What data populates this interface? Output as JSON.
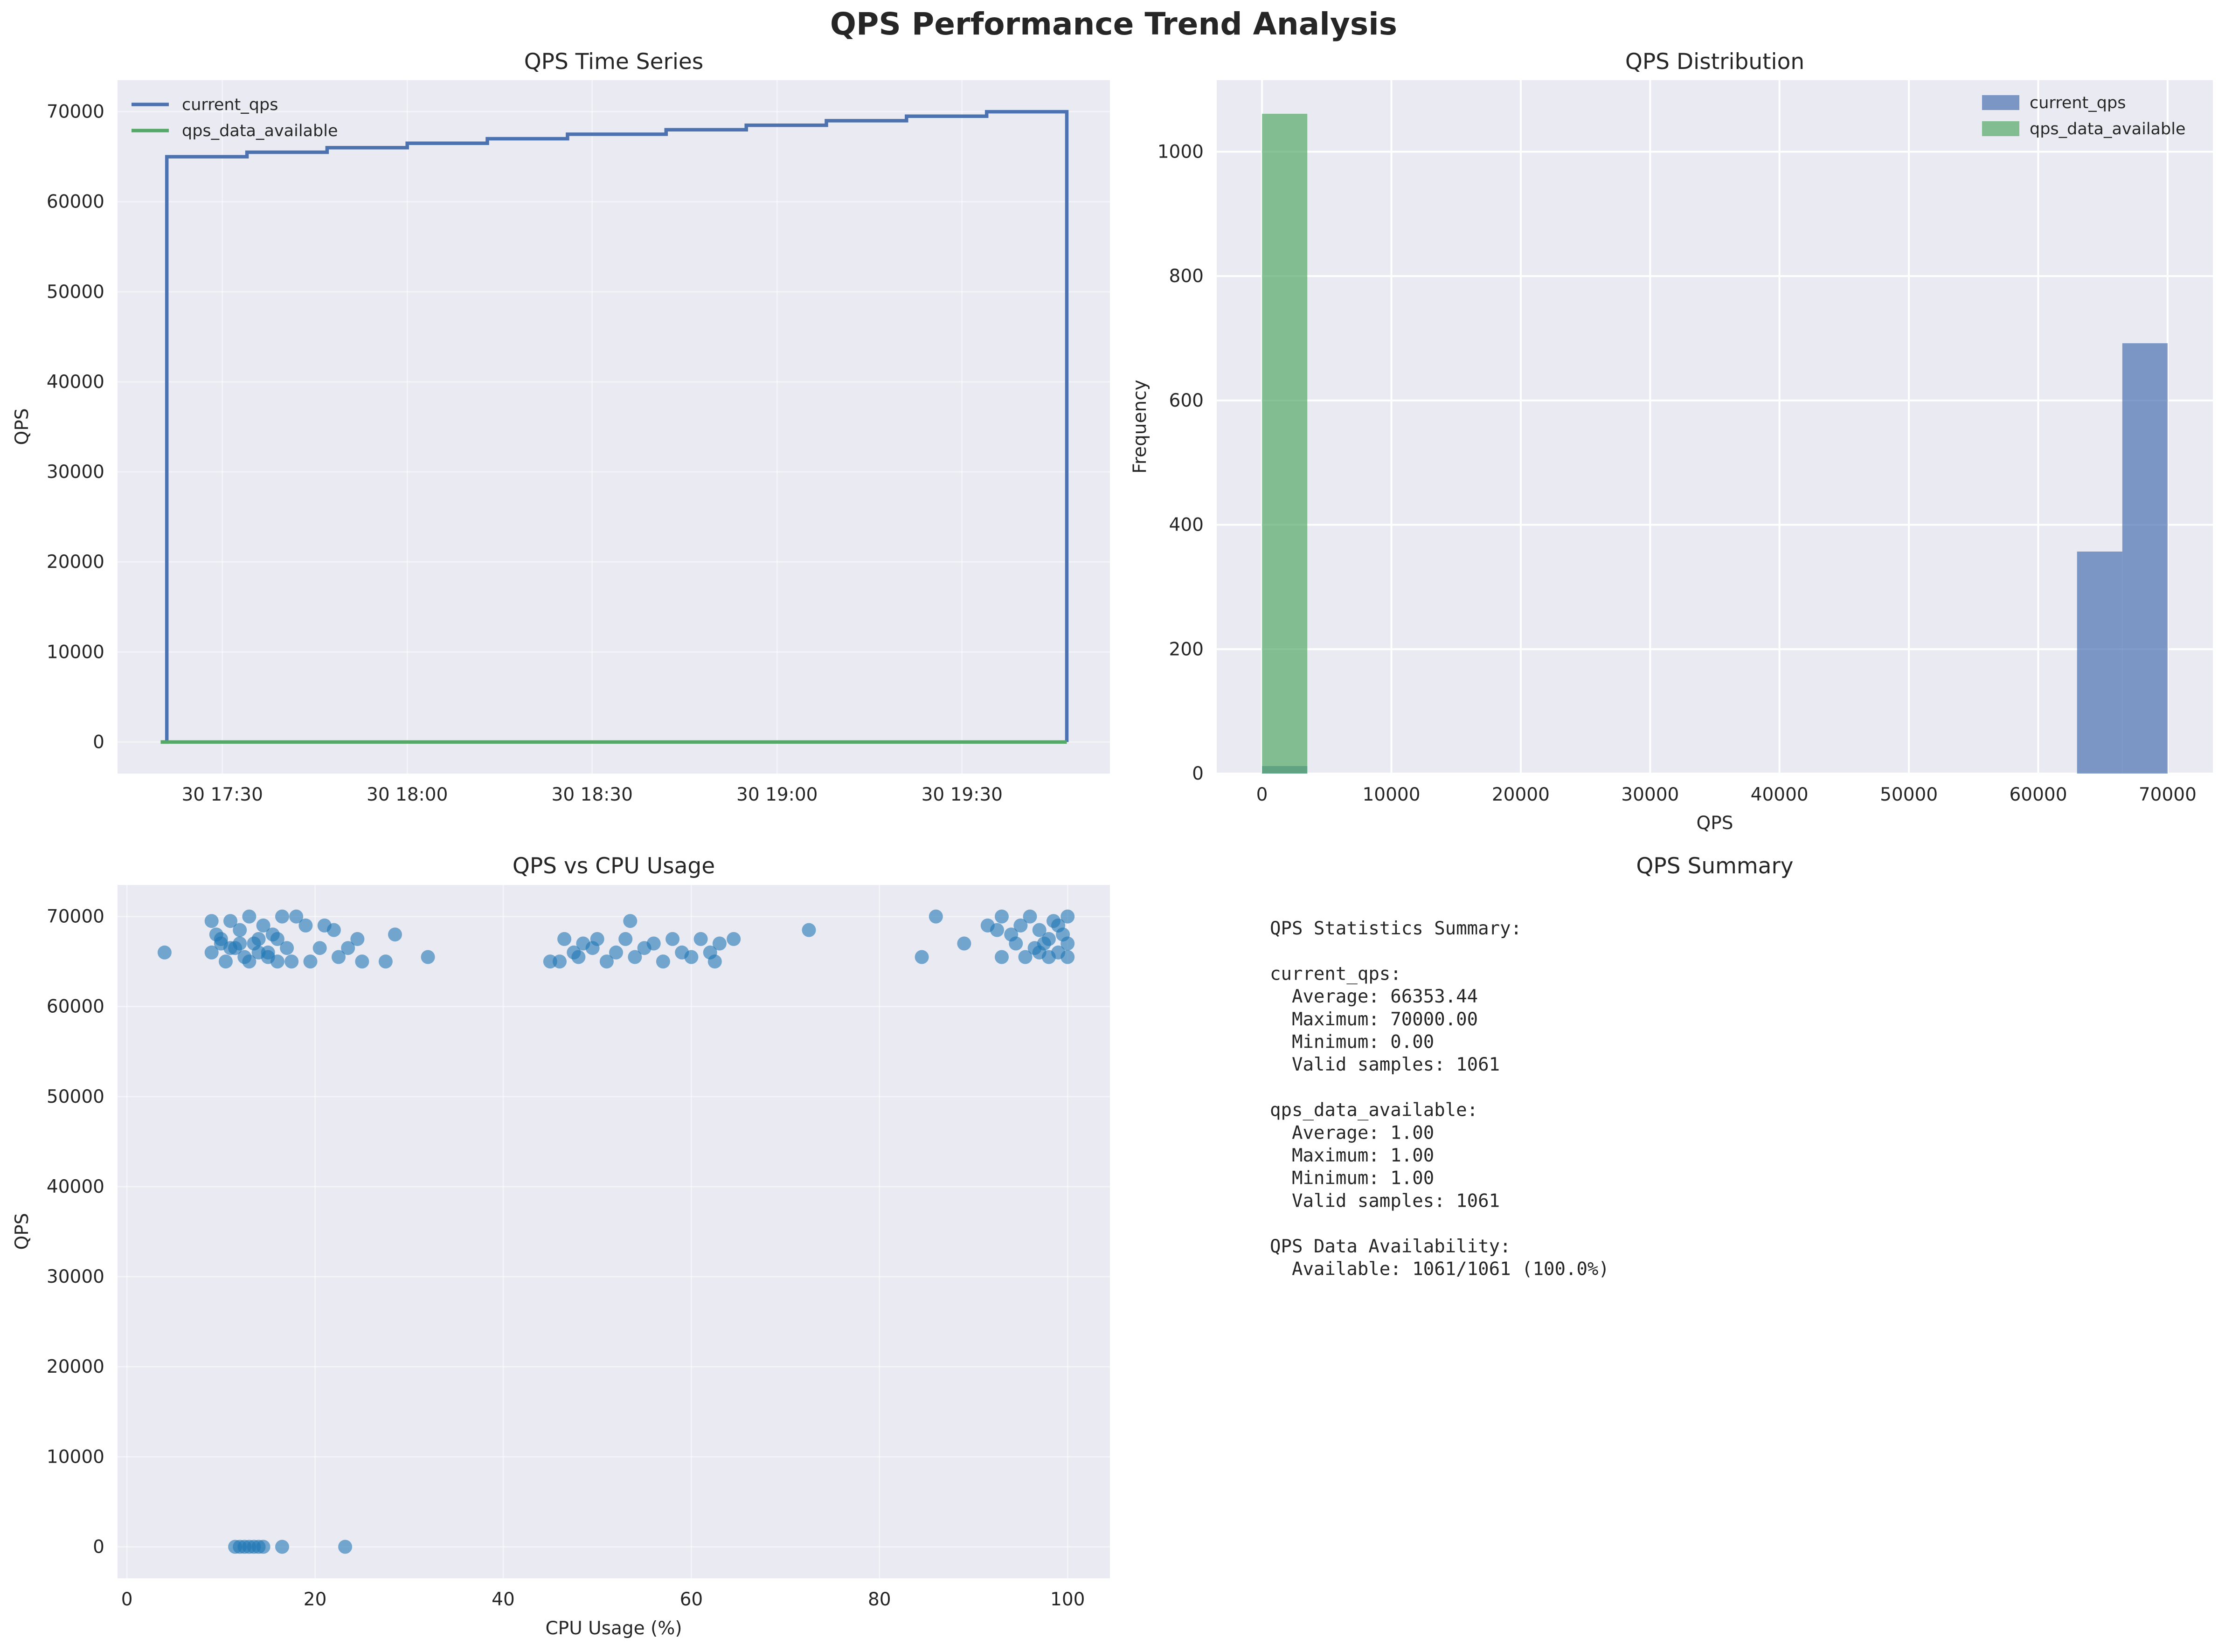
{
  "figure": {
    "title": "QPS Performance Trend Analysis",
    "background": "#ffffff",
    "axes_background": "#eaeaf2",
    "grid_color": "#ffffff"
  },
  "chart_data": [
    {
      "type": "line",
      "title": "QPS Time Series",
      "xlabel": "",
      "ylabel": "QPS",
      "x_ticks": [
        "30 17:30",
        "30 18:00",
        "30 18:30",
        "30 19:00",
        "30 19:30"
      ],
      "xlim": [
        "17:13",
        "19:54"
      ],
      "ylim": [
        -3500,
        73500
      ],
      "y_ticks": [
        0,
        10000,
        20000,
        30000,
        40000,
        50000,
        60000,
        70000
      ],
      "grid": true,
      "legend": "top-left",
      "series": [
        {
          "name": "current_qps",
          "color": "#4c72b0",
          "points": [
            [
              "17:20",
              0
            ],
            [
              "17:21",
              0
            ],
            [
              "17:21",
              65000
            ],
            [
              "17:34",
              65000
            ],
            [
              "17:34",
              65500
            ],
            [
              "17:47",
              65500
            ],
            [
              "17:47",
              66000
            ],
            [
              "18:00",
              66000
            ],
            [
              "18:00",
              66500
            ],
            [
              "18:13",
              66500
            ],
            [
              "18:13",
              67000
            ],
            [
              "18:26",
              67000
            ],
            [
              "18:26",
              67500
            ],
            [
              "18:42",
              67500
            ],
            [
              "18:42",
              68000
            ],
            [
              "18:55",
              68000
            ],
            [
              "18:55",
              68500
            ],
            [
              "19:08",
              68500
            ],
            [
              "19:08",
              69000
            ],
            [
              "19:21",
              69000
            ],
            [
              "19:21",
              69500
            ],
            [
              "19:34",
              69500
            ],
            [
              "19:34",
              70000
            ],
            [
              "19:47",
              70000
            ],
            [
              "19:47",
              0
            ]
          ]
        },
        {
          "name": "qps_data_available",
          "color": "#55a868",
          "points": [
            [
              "17:20",
              1
            ],
            [
              "19:47",
              1
            ]
          ]
        }
      ]
    },
    {
      "type": "bar",
      "title": "QPS Distribution",
      "xlabel": "QPS",
      "ylabel": "Frequency",
      "xlim": [
        -3500,
        73500
      ],
      "ylim": [
        0,
        1115
      ],
      "x_ticks": [
        0,
        10000,
        20000,
        30000,
        40000,
        50000,
        60000,
        70000
      ],
      "y_ticks": [
        0,
        200,
        400,
        600,
        800,
        1000
      ],
      "grid": true,
      "legend": "top-right",
      "series": [
        {
          "name": "current_qps",
          "color": "#4c72b0",
          "bins": [
            {
              "from": 0,
              "to": 3500,
              "count": 12
            },
            {
              "from": 63000,
              "to": 66500,
              "count": 357
            },
            {
              "from": 66500,
              "to": 70000,
              "count": 692
            }
          ]
        },
        {
          "name": "qps_data_available",
          "color": "#55a868",
          "bins": [
            {
              "from": 0,
              "to": 3500,
              "count": 1061
            }
          ]
        }
      ]
    },
    {
      "type": "scatter",
      "title": "QPS vs CPU Usage",
      "xlabel": "CPU Usage (%)",
      "ylabel": "QPS",
      "xlim": [
        -1,
        104.5
      ],
      "ylim": [
        -3500,
        73500
      ],
      "x_ticks": [
        0,
        20,
        40,
        60,
        80,
        100
      ],
      "y_ticks": [
        0,
        10000,
        20000,
        30000,
        40000,
        50000,
        60000,
        70000
      ],
      "grid": true,
      "color": "#1f77b4",
      "points": [
        [
          4,
          66000
        ],
        [
          9,
          69500
        ],
        [
          9.5,
          68000
        ],
        [
          10,
          67000
        ],
        [
          10.5,
          65000
        ],
        [
          11,
          69500
        ],
        [
          11.5,
          66500
        ],
        [
          12,
          68500
        ],
        [
          12.5,
          65500
        ],
        [
          13,
          70000
        ],
        [
          13.5,
          67000
        ],
        [
          14,
          66000
        ],
        [
          14.5,
          69000
        ],
        [
          15,
          65500
        ],
        [
          15.5,
          68000
        ],
        [
          16,
          67500
        ],
        [
          16.5,
          70000
        ],
        [
          17,
          66500
        ],
        [
          17.5,
          65000
        ],
        [
          18,
          70000
        ],
        [
          19,
          69000
        ],
        [
          19.5,
          65000
        ],
        [
          20.5,
          66500
        ],
        [
          21,
          69000
        ],
        [
          22,
          68500
        ],
        [
          22.5,
          65500
        ],
        [
          23.5,
          66500
        ],
        [
          24.5,
          67500
        ],
        [
          25,
          65000
        ],
        [
          27.5,
          65000
        ],
        [
          28.5,
          68000
        ],
        [
          32,
          65500
        ],
        [
          9,
          66000
        ],
        [
          10,
          67500
        ],
        [
          11,
          66500
        ],
        [
          12,
          67000
        ],
        [
          13,
          65000
        ],
        [
          14,
          67500
        ],
        [
          15,
          66000
        ],
        [
          16,
          65000
        ],
        [
          45,
          65000
        ],
        [
          46,
          65000
        ],
        [
          46.5,
          67500
        ],
        [
          47.5,
          66000
        ],
        [
          48,
          65500
        ],
        [
          48.5,
          67000
        ],
        [
          49.5,
          66500
        ],
        [
          50,
          67500
        ],
        [
          51,
          65000
        ],
        [
          52,
          66000
        ],
        [
          53,
          67500
        ],
        [
          53.5,
          69500
        ],
        [
          54,
          65500
        ],
        [
          55,
          66500
        ],
        [
          56,
          67000
        ],
        [
          57,
          65000
        ],
        [
          58,
          67500
        ],
        [
          59,
          66000
        ],
        [
          60,
          65500
        ],
        [
          61,
          67500
        ],
        [
          62,
          66000
        ],
        [
          62.5,
          65000
        ],
        [
          63,
          67000
        ],
        [
          64.5,
          67500
        ],
        [
          72.5,
          68500
        ],
        [
          84.5,
          65500
        ],
        [
          86,
          70000
        ],
        [
          89,
          67000
        ],
        [
          91.5,
          69000
        ],
        [
          92.5,
          68500
        ],
        [
          93,
          65500
        ],
        [
          93,
          70000
        ],
        [
          94,
          68000
        ],
        [
          94.5,
          67000
        ],
        [
          95,
          69000
        ],
        [
          95.5,
          65500
        ],
        [
          96,
          70000
        ],
        [
          96.5,
          66500
        ],
        [
          97,
          68500
        ],
        [
          97.5,
          67000
        ],
        [
          98,
          65500
        ],
        [
          98.5,
          69500
        ],
        [
          99,
          66000
        ],
        [
          99.5,
          68000
        ],
        [
          100,
          70000
        ],
        [
          100,
          65500
        ],
        [
          100,
          67000
        ],
        [
          99,
          69000
        ],
        [
          97,
          66000
        ],
        [
          98,
          67500
        ],
        [
          11.5,
          0
        ],
        [
          12,
          0
        ],
        [
          12.5,
          0
        ],
        [
          13,
          0
        ],
        [
          13.5,
          0
        ],
        [
          14,
          0
        ],
        [
          14.5,
          0
        ],
        [
          16.5,
          0
        ],
        [
          23.2,
          0
        ]
      ]
    }
  ],
  "summary": {
    "title": "QPS Summary",
    "lines": [
      "QPS Statistics Summary:",
      "",
      "current_qps:",
      "  Average: 66353.44",
      "  Maximum: 70000.00",
      "  Minimum: 0.00",
      "  Valid samples: 1061",
      "",
      "qps_data_available:",
      "  Average: 1.00",
      "  Maximum: 1.00",
      "  Minimum: 1.00",
      "  Valid samples: 1061",
      "",
      "QPS Data Availability:",
      "  Available: 1061/1061 (100.0%)"
    ]
  }
}
